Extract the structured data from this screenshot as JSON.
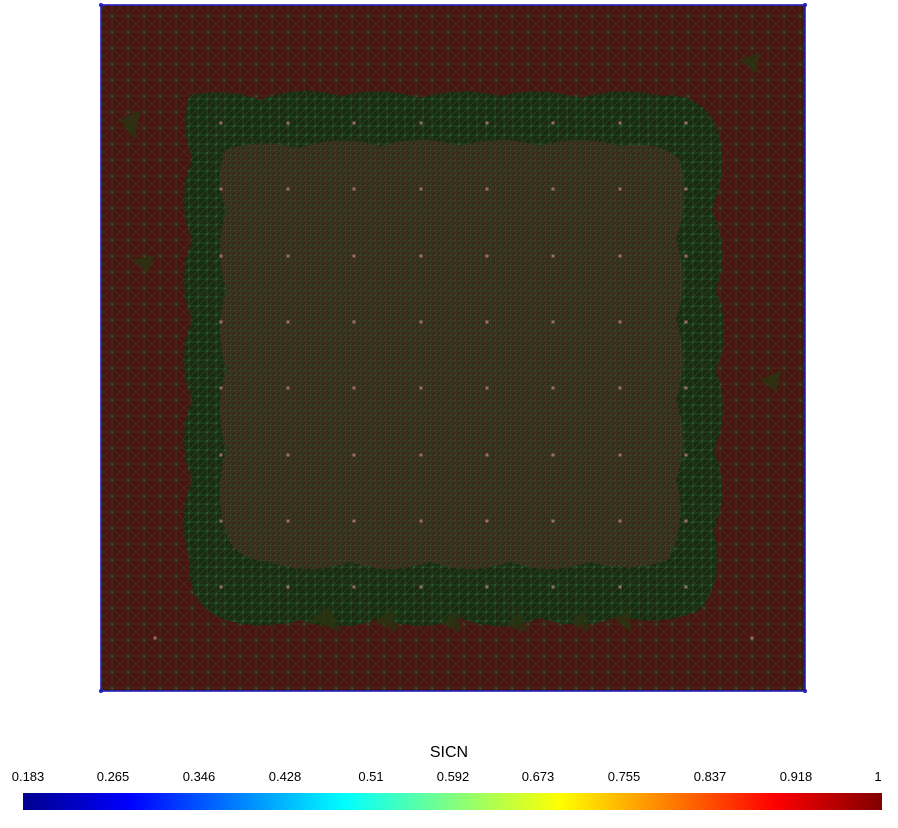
{
  "colorbar": {
    "title": "SICN",
    "ticks": [
      "0.183",
      "0.265",
      "0.346",
      "0.428",
      "0.51",
      "0.592",
      "0.673",
      "0.755",
      "0.837",
      "0.918",
      "1"
    ],
    "colormap_stops": [
      "#00008f",
      "#0000ff",
      "#0080ff",
      "#00ffff",
      "#80ff80",
      "#ffff00",
      "#ff8000",
      "#ff0000",
      "#800000"
    ]
  },
  "mesh": {
    "boundary_color": "#2020c0",
    "outer_fill_color": "#4a1410",
    "transition_fill_color": "#1f2a12",
    "inner_fill_color": "#3a2a18",
    "edge_color": "#1f7a3a",
    "node_color": "#5fd7a0",
    "marker_color": "#c08080"
  }
}
